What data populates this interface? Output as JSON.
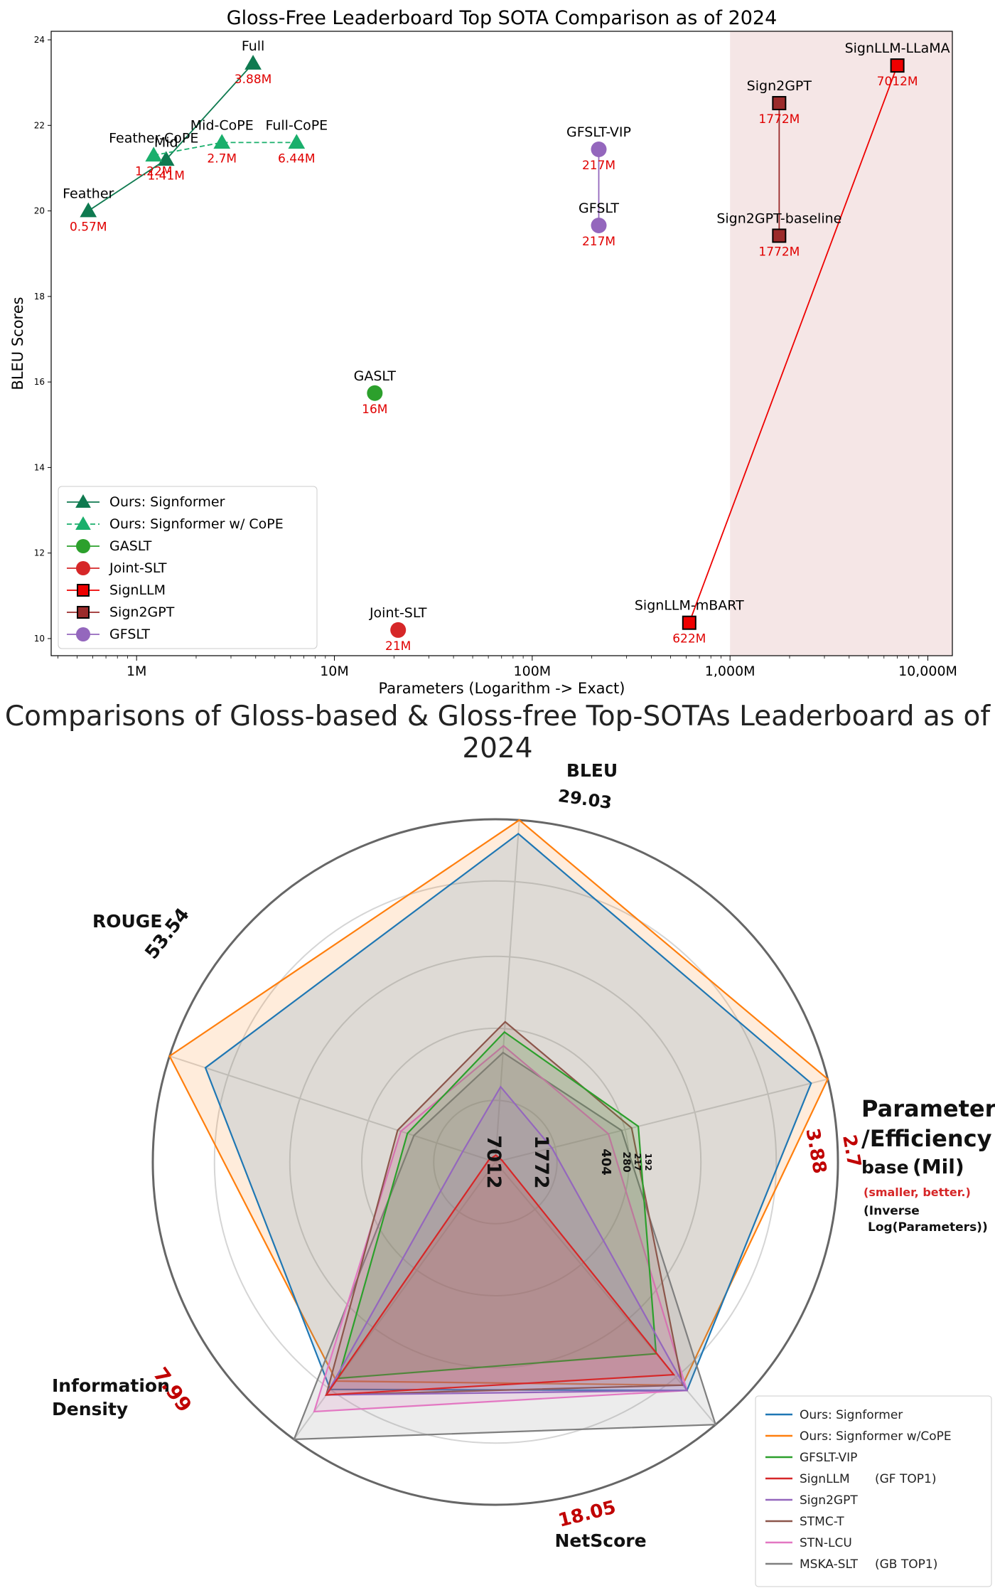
{
  "chart_data": [
    {
      "type": "scatter",
      "title": "Gloss-Free Leaderboard Top SOTA Comparison as of 2024",
      "xlabel": "Parameters (Logarithm -> Exact)",
      "ylabel": "BLEU Scores",
      "x_scale": "log",
      "ylim": [
        9.6,
        24.2
      ],
      "y_ticks": [
        "10",
        "12",
        "14",
        "16",
        "18",
        "20",
        "22",
        "24"
      ],
      "x_ticks": [
        "1M",
        "10M",
        "100M",
        "1,000M",
        "10,000M"
      ],
      "legend_position": "bottom-left",
      "highlight_region": {
        "from": "1,000M",
        "to": "10,000M",
        "color": "#f2dede"
      },
      "series": [
        {
          "name": "Ours: Signformer",
          "color": "#0f7a50",
          "marker": "triangle",
          "line": "solid",
          "points": [
            {
              "label": "Feather",
              "params_label": "0.57M",
              "x": 0.57,
              "y": 20.0
            },
            {
              "label": "Mid",
              "params_label": "1.41M",
              "x": 1.41,
              "y": 21.2
            },
            {
              "label": "Full",
              "params_label": "3.88M",
              "x": 3.88,
              "y": 23.45
            }
          ]
        },
        {
          "name": "Ours: Signformer w/ CoPE",
          "color": "#1aaf6c",
          "marker": "triangle",
          "line": "dashed",
          "points": [
            {
              "label": "Feather-CoPE",
              "params_label": "1.22M",
              "x": 1.22,
              "y": 21.3
            },
            {
              "label": "Mid-CoPE",
              "params_label": "2.7M",
              "x": 2.7,
              "y": 21.6
            },
            {
              "label": "Full-CoPE",
              "params_label": "6.44M",
              "x": 6.44,
              "y": 21.6
            }
          ]
        },
        {
          "name": "GASLT",
          "color": "#2ca02c",
          "marker": "circle",
          "line": "none",
          "points": [
            {
              "label": "GASLT",
              "params_label": "16M",
              "x": 16,
              "y": 15.74
            }
          ]
        },
        {
          "name": "Joint-SLT",
          "color": "#d62728",
          "marker": "circle",
          "line": "none",
          "points": [
            {
              "label": "Joint-SLT",
              "params_label": "21M",
              "x": 21,
              "y": 10.2
            }
          ]
        },
        {
          "name": "SignLLM",
          "color": "#ee0000",
          "marker": "square",
          "line": "solid",
          "points": [
            {
              "label": "SignLLM-mBART",
              "params_label": "622M",
              "x": 622,
              "y": 10.37
            },
            {
              "label": "SignLLM-LLaMA",
              "params_label": "7012M",
              "x": 7012,
              "y": 23.4
            }
          ]
        },
        {
          "name": "Sign2GPT",
          "color": "#9b2b2b",
          "marker": "square",
          "line": "solid",
          "points": [
            {
              "label": "Sign2GPT-baseline",
              "params_label": "1772M",
              "x": 1772,
              "y": 19.42
            },
            {
              "label": "Sign2GPT",
              "params_label": "1772M",
              "x": 1772,
              "y": 22.52
            }
          ]
        },
        {
          "name": "GFSLT",
          "color": "#9467bd",
          "marker": "circle",
          "line": "solid",
          "points": [
            {
              "label": "GFSLT",
              "params_label": "217M",
              "x": 217,
              "y": 19.66
            },
            {
              "label": "GFSLT-VIP",
              "params_label": "217M",
              "x": 217,
              "y": 21.44
            }
          ]
        }
      ]
    },
    {
      "type": "radar",
      "title": "Comparisons of Gloss-based & Gloss-free Top-SOTAs Leaderboard as of 2024",
      "axes": [
        {
          "name": "BLEU",
          "max_label": "29.03"
        },
        {
          "name": "Parameter /Efficiency",
          "name_lines": [
            "Parameter",
            "/Efficiency"
          ],
          "sub_label": "base",
          "sub_unit": "(Mil)",
          "note": "(smaller, better.)",
          "note2_lines": [
            "(Inverse",
            "Log(Parameters))"
          ],
          "max_label": "2.7",
          "second_label": "3.88",
          "inner_labels": [
            "7012",
            "1772",
            "404",
            "280",
            "217",
            "192"
          ]
        },
        {
          "name": "NetScore",
          "max_label": "18.05"
        },
        {
          "name": "Information Density",
          "name_lines": [
            "Information",
            "Density"
          ],
          "max_label": "7.99"
        },
        {
          "name": "ROUGE",
          "max_label": "53.54"
        }
      ],
      "legend_position": "bottom-right",
      "series": [
        {
          "name": "Ours: Signformer",
          "color": "#1f77b4",
          "values": [
            0.82,
            0.89,
            0.96,
            0.95,
            0.87
          ]
        },
        {
          "name": "Ours: Signformer w/CoPE",
          "color": "#ff7f0e",
          "values": [
            0.79,
            1.0,
            1.0,
            1.0,
            0.85
          ]
        },
        {
          "name": "GFSLT-VIP",
          "color": "#2ca02c",
          "values": [
            0.78,
            0.27,
            0.38,
            0.43,
            0.73
          ]
        },
        {
          "name": "SignLLM",
          "color": "#d62728",
          "values": [
            0.84,
            0.0,
            0.0,
            0.0,
            0.81
          ],
          "extra": "(GF TOP1)"
        },
        {
          "name": "Sign2GPT",
          "color": "#9467bd",
          "values": [
            0.84,
            0.1,
            0.22,
            0.17,
            0.87
          ]
        },
        {
          "name": "STMC-T",
          "color": "#8c564b",
          "values": [
            0.84,
            0.3,
            0.41,
            0.41,
            0.85
          ]
        },
        {
          "name": "STN-LCU",
          "color": "#e377c2",
          "values": [
            0.9,
            0.29,
            0.34,
            0.34,
            0.87
          ]
        },
        {
          "name": "MSKA-SLT",
          "color": "#7f7f7f",
          "values": [
            1.0,
            0.25,
            0.32,
            0.38,
            1.0
          ],
          "extra": "(GB TOP1)"
        }
      ]
    }
  ]
}
